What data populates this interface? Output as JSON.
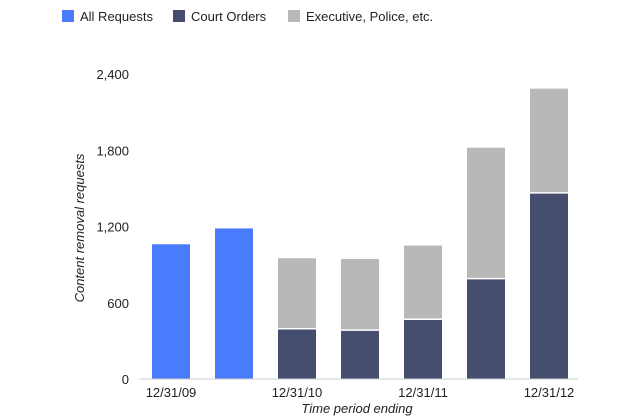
{
  "chart_data": {
    "type": "bar",
    "stacked": true,
    "categories": [
      "12/31/09",
      "",
      "12/31/10",
      "",
      "12/31/11",
      "",
      "12/31/12"
    ],
    "series": [
      {
        "name": "All Requests",
        "color": "#4a7bfc",
        "values": [
          1060,
          1185,
          0,
          0,
          0,
          0,
          0
        ]
      },
      {
        "name": "Court Orders",
        "color": "#454e6e",
        "values": [
          0,
          0,
          395,
          385,
          470,
          790,
          1465
        ]
      },
      {
        "name": "Executive, Police, etc.",
        "color": "#b8b8b8",
        "values": [
          0,
          0,
          555,
          560,
          580,
          1030,
          820
        ]
      }
    ],
    "ylabel": "Content removal requests",
    "xlabel": "Time period ending",
    "yticks": [
      "0",
      "600",
      "1,200",
      "1,800",
      "2,400"
    ],
    "ylim": [
      0,
      2400
    ],
    "grid": false,
    "legend_position": "top-left"
  }
}
